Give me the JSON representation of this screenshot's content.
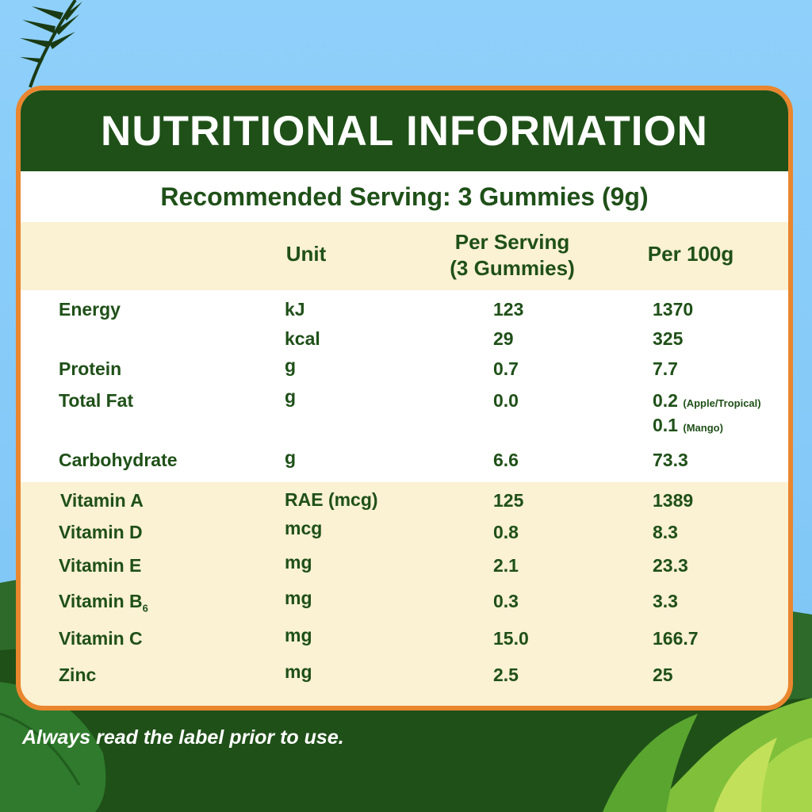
{
  "title": "NUTRITIONAL INFORMATION",
  "serving": "Recommended Serving: 3 Gummies (9g)",
  "columns": {
    "unit": "Unit",
    "per_serving_line1": "Per Serving",
    "per_serving_line2": "(3 Gummies)",
    "per_100g": "Per 100g"
  },
  "rows": [
    {
      "nutrient": "Energy",
      "unit": "kJ",
      "per_serving": "123",
      "per_100g": "1370"
    },
    {
      "nutrient": "",
      "unit": "kcal",
      "per_serving": "29",
      "per_100g": "325"
    },
    {
      "nutrient": "Protein",
      "unit": "g",
      "per_serving": "0.7",
      "per_100g": "7.7"
    },
    {
      "nutrient": "Total Fat",
      "unit": "g",
      "per_serving": "0.0",
      "per_100g": "0.2",
      "per_100g_note": "(Apple/Tropical)",
      "per_100g_alt": "0.1",
      "per_100g_alt_note": "(Mango)"
    },
    {
      "nutrient": "Carbohydrate",
      "unit": "g",
      "per_serving": "6.6",
      "per_100g": "73.3"
    },
    {
      "nutrient": "Vitamin A",
      "unit": "RAE (mcg)",
      "per_serving": "125",
      "per_100g": "1389"
    },
    {
      "nutrient": "Vitamin D",
      "unit": "mcg",
      "per_serving": "0.8",
      "per_100g": "8.3"
    },
    {
      "nutrient": "Vitamin E",
      "unit": "mg",
      "per_serving": "2.1",
      "per_100g": "23.3"
    },
    {
      "nutrient": "Vitamin B",
      "nutrient_sub": "6",
      "unit": "mg",
      "per_serving": "0.3",
      "per_100g": "3.3"
    },
    {
      "nutrient": "Vitamin C",
      "unit": "mg",
      "per_serving": "15.0",
      "per_100g": "166.7"
    },
    {
      "nutrient": "Zinc",
      "unit": "mg",
      "per_serving": "2.5",
      "per_100g": "25"
    }
  ],
  "footer_note": "Always read the label prior to use.",
  "colors": {
    "dark_green": "#1f5018",
    "orange_border": "#e9862e",
    "cream": "#fbf1d3",
    "sky": "#8fd0fb"
  }
}
